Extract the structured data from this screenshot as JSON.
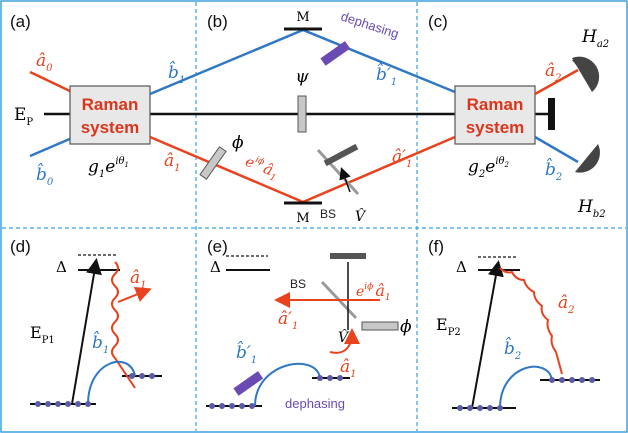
{
  "colors": {
    "red": "#e8421e",
    "blue": "#2e78c4",
    "purple": "#6a4bb3",
    "black": "#111111",
    "gray": "#bfbfbf",
    "dark_gray": "#555555",
    "dash_border": "#3da0e0",
    "atom": "#5a5aa8"
  },
  "panels": {
    "a": "(a)",
    "b": "(b)",
    "c": "(c)",
    "d": "(d)",
    "e": "(e)",
    "f": "(f)"
  },
  "top": {
    "box1_line1": "Raman",
    "box1_line2": "system",
    "box2_line1": "Raman",
    "box2_line2": "system",
    "pump": "E",
    "pump_sub": "P",
    "a0": "â",
    "a0_sub": "0",
    "b0": "b̂",
    "b0_sub": "0",
    "b1": "b̂",
    "b1_sub": "1",
    "a1": "â",
    "a1_sub": "1",
    "g1": "g",
    "g1_sub": "1",
    "g1_exp": "e",
    "g1_exp_sup": "iθ",
    "g1_exp_sup_sub": "1",
    "g2": "g",
    "g2_sub": "2",
    "g2_exp": "e",
    "g2_exp_sup": "iθ",
    "g2_exp_sup_sub": "2",
    "mirror_top": "M",
    "mirror_bottom": "M",
    "dephasing": "dephasing",
    "b1_prime": "b̂′",
    "b1_prime_sub": "1",
    "psi": "ψ",
    "phi": "ϕ",
    "phase_e": "e",
    "phase_sup": "iϕ",
    "a1_phase": "â",
    "a1_phase_sub": "1",
    "a1_prime": "â′",
    "a1_prime_sub": "1",
    "bs": "BS",
    "v": "V̂",
    "a2": "â",
    "a2_sub": "2",
    "b2": "b̂",
    "b2_sub": "2",
    "Ha2": "H",
    "Ha2_sub": "a2",
    "Hb2": "H",
    "Hb2_sub": "b2"
  },
  "bottom": {
    "d_delta": "Δ",
    "d_pump": "E",
    "d_pump_sub": "P1",
    "d_b1": "b̂",
    "d_b1_sub": "1",
    "d_a1": "â",
    "d_a1_sub": "1",
    "e_delta": "Δ",
    "e_bs": "BS",
    "e_a1_prime": "â′",
    "e_a1_prime_sub": "1",
    "e_phase": "e",
    "e_phase_sup": "iϕ",
    "e_a1": "â",
    "e_a1_sub": "1",
    "e_v": "V̂",
    "e_phi": "ϕ",
    "e_a1_bottom": "â",
    "e_a1_bottom_sub": "1",
    "e_b1_prime": "b̂′",
    "e_b1_prime_sub": "1",
    "e_dephasing": "dephasing",
    "f_delta": "Δ",
    "f_pump": "E",
    "f_pump_sub": "P2",
    "f_a2": "â",
    "f_a2_sub": "2",
    "f_b2": "b̂",
    "f_b2_sub": "2"
  }
}
